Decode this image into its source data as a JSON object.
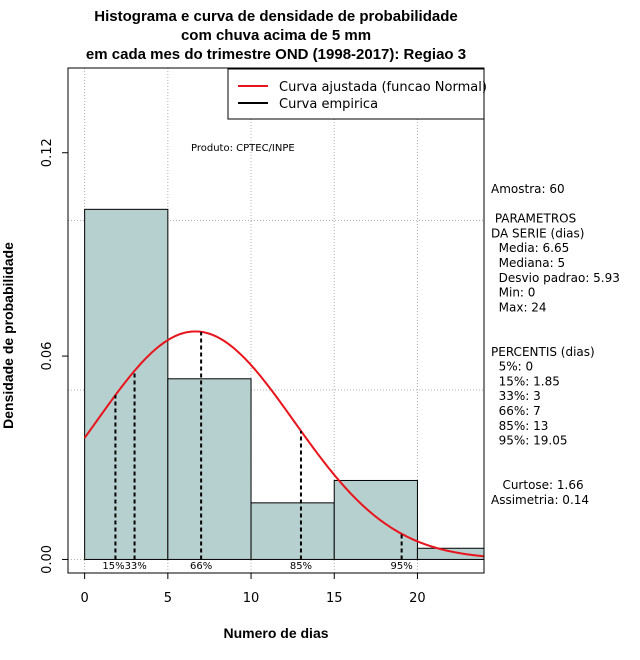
{
  "chart_data": {
    "type": "bar",
    "title_lines": [
      "Histograma e curva de densidade de probabilidade",
      "com chuva acima de 5 mm",
      "em cada mes do trimestre OND (1998-2017): Regiao 3"
    ],
    "xlabel": "Numero de dias",
    "ylabel": "Densidade de probabilidade",
    "xlim": [
      -1,
      24
    ],
    "ylim": [
      -0.004,
      0.145
    ],
    "x_ticks": [
      0,
      5,
      10,
      15,
      20
    ],
    "x_tick_labels": [
      "0",
      "5",
      "10",
      "15",
      "20"
    ],
    "y_ticks": [
      0.0,
      0.06,
      0.12
    ],
    "y_tick_labels": [
      "0.00",
      "0.06",
      "0.12"
    ],
    "grid": true,
    "bins": [
      {
        "start": 0,
        "end": 5,
        "density": 0.1033
      },
      {
        "start": 5,
        "end": 10,
        "density": 0.0533
      },
      {
        "start": 10,
        "end": 15,
        "density": 0.0167
      },
      {
        "start": 15,
        "end": 20,
        "density": 0.0233
      },
      {
        "start": 20,
        "end": 25,
        "density": 0.0033
      }
    ],
    "normal_fit": {
      "mean": 6.65,
      "sd": 5.93,
      "x_min": 0,
      "x_max": 24
    },
    "percentile_lines": [
      {
        "x": 1.85,
        "label": "15%"
      },
      {
        "x": 3,
        "label": "33%"
      },
      {
        "x": 7,
        "label": "66%"
      },
      {
        "x": 13,
        "label": "85%"
      },
      {
        "x": 19.05,
        "label": "95%"
      }
    ],
    "percentile_label_text": [
      {
        "text": "15%33%",
        "x": 2.4
      },
      {
        "text": "66%",
        "x": 7
      },
      {
        "text": "85%",
        "x": 13
      },
      {
        "text": "95%",
        "x": 19.05
      }
    ],
    "legend": [
      {
        "label": "Curva ajustada (funcao Normal)",
        "color": "#e8141b"
      },
      {
        "label": "Curva empirica",
        "color": "#000000"
      }
    ],
    "legend_position": "top-right",
    "annotation": "Produto: CPTEC/INPE",
    "bar_color": "#b6cfcf",
    "curve_color": "#e8141b"
  },
  "stats_panel": [
    "Amostra: 60",
    "",
    " PARAMETROS",
    "DA SERIE (dias)",
    "  Media: 6.65",
    "  Mediana: 5",
    "  Desvio padrao: 5.93",
    "  Min: 0",
    "  Max: 24",
    "",
    "",
    "PERCENTIS (dias)",
    "  5%: 0",
    "  15%: 1.85",
    "  33%: 3",
    "  66%: 7",
    "  85%: 13",
    "  95%: 19.05",
    "",
    "",
    "   Curtose: 1.66",
    "Assimetria: 0.14"
  ]
}
